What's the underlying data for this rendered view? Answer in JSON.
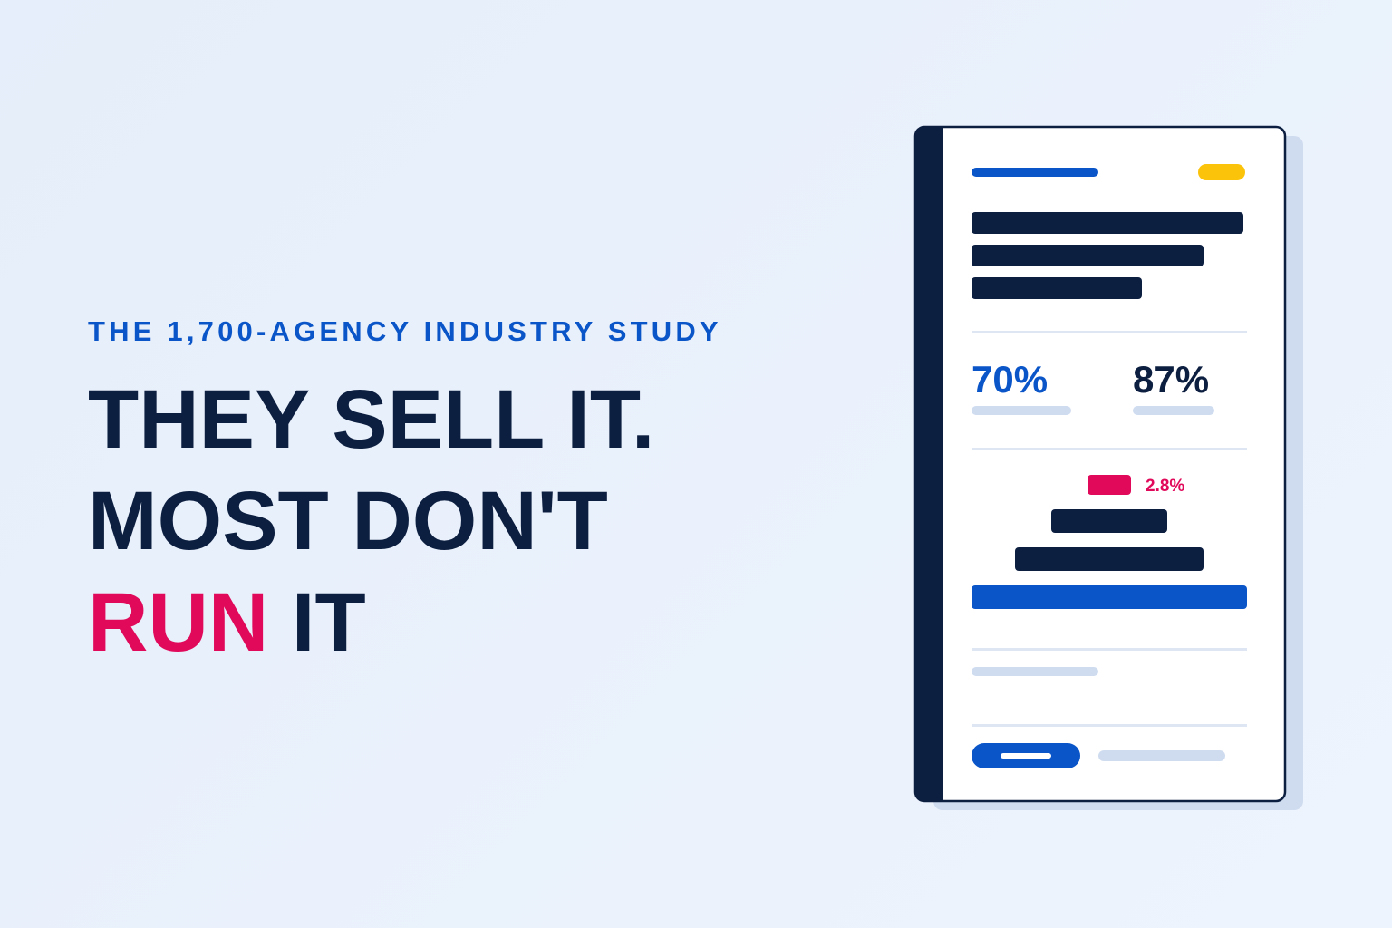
{
  "eyebrow": "THE 1,700-AGENCY INDUSTRY STUDY",
  "headline": {
    "line1": "THEY SELL IT.",
    "line2": "MOST DON'T",
    "line3": {
      "highlight": "RUN",
      "rest": "IT"
    }
  },
  "report": {
    "stats": [
      "70%",
      "87%"
    ],
    "callout": "2.8%"
  }
}
